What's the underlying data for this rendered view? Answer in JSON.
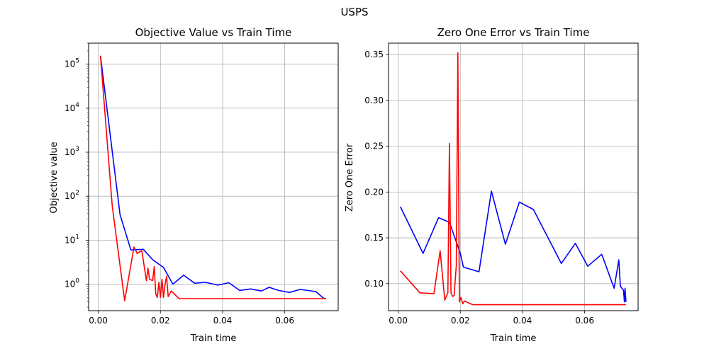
{
  "suptitle": "USPS",
  "chart_data": [
    {
      "type": "line",
      "title": "Objective Value vs Train Time",
      "xlabel": "Train time",
      "ylabel": "Objective value",
      "yscale": "log",
      "xlim": [
        -0.0031,
        0.0772
      ],
      "ylim": [
        0.25,
        300000
      ],
      "xticks": [
        "0.00",
        "0.02",
        "0.04",
        "0.06"
      ],
      "xtick_values": [
        0,
        0.02,
        0.04,
        0.06
      ],
      "yticks": [
        "10^0",
        "10^1",
        "10^2",
        "10^3",
        "10^4",
        "10^5"
      ],
      "ytick_values": [
        1,
        10,
        100,
        1000,
        10000,
        100000
      ],
      "grid": true,
      "series": [
        {
          "color": "#0000ff",
          "x": [
            0.0007,
            0.007,
            0.0105,
            0.0145,
            0.0175,
            0.021,
            0.024,
            0.0275,
            0.031,
            0.0345,
            0.0385,
            0.042,
            0.0455,
            0.049,
            0.0525,
            0.055,
            0.058,
            0.0615,
            0.065,
            0.07,
            0.0715,
            0.0725,
            0.0733
          ],
          "y": [
            155000,
            38,
            6.0,
            6.2,
            3.6,
            2.4,
            1.0,
            1.6,
            1.05,
            1.1,
            0.95,
            1.08,
            0.72,
            0.78,
            0.7,
            0.85,
            0.72,
            0.65,
            0.76,
            0.68,
            0.55,
            0.48,
            0.47
          ]
        },
        {
          "color": "#ff0000",
          "x": [
            0.0007,
            0.0045,
            0.0085,
            0.0115,
            0.0125,
            0.014,
            0.0155,
            0.016,
            0.0165,
            0.0175,
            0.018,
            0.0185,
            0.019,
            0.0195,
            0.02,
            0.0205,
            0.021,
            0.0215,
            0.022,
            0.0225,
            0.0235,
            0.026,
            0.03,
            0.04,
            0.05,
            0.06,
            0.07,
            0.072,
            0.0733
          ],
          "y": [
            155000,
            60,
            0.42,
            7.0,
            5.0,
            5.8,
            1.2,
            2.3,
            1.3,
            1.2,
            2.5,
            0.6,
            0.5,
            1.1,
            0.5,
            1.3,
            0.5,
            1.0,
            1.5,
            0.52,
            0.7,
            0.47,
            0.47,
            0.47,
            0.47,
            0.47,
            0.47,
            0.47,
            0.47
          ]
        }
      ]
    },
    {
      "type": "line",
      "title": "Zero One Error vs Train Time",
      "xlabel": "Train time",
      "ylabel": "Zero One Error",
      "yscale": "linear",
      "xlim": [
        -0.0031,
        0.0772
      ],
      "ylim": [
        0.0705,
        0.3625
      ],
      "xticks": [
        "0.00",
        "0.02",
        "0.04",
        "0.06"
      ],
      "xtick_values": [
        0,
        0.02,
        0.04,
        0.06
      ],
      "yticks": [
        "0.10",
        "0.15",
        "0.20",
        "0.25",
        "0.30",
        "0.35"
      ],
      "ytick_values": [
        0.1,
        0.15,
        0.2,
        0.25,
        0.3,
        0.35
      ],
      "grid": true,
      "series": [
        {
          "color": "#0000ff",
          "x": [
            0.0007,
            0.008,
            0.013,
            0.0165,
            0.02,
            0.021,
            0.026,
            0.03,
            0.0345,
            0.039,
            0.0435,
            0.0525,
            0.057,
            0.061,
            0.0655,
            0.0695,
            0.071,
            0.0715,
            0.0725,
            0.0728,
            0.073,
            0.0733
          ],
          "y": [
            0.184,
            0.133,
            0.172,
            0.167,
            0.133,
            0.118,
            0.113,
            0.201,
            0.143,
            0.189,
            0.181,
            0.122,
            0.144,
            0.119,
            0.132,
            0.095,
            0.126,
            0.097,
            0.093,
            0.08,
            0.095,
            0.08
          ]
        },
        {
          "color": "#ff0000",
          "x": [
            0.0007,
            0.007,
            0.0115,
            0.0135,
            0.015,
            0.016,
            0.0165,
            0.017,
            0.0175,
            0.018,
            0.0187,
            0.0192,
            0.0197,
            0.0202,
            0.0208,
            0.0213,
            0.022,
            0.024,
            0.026,
            0.04,
            0.06,
            0.0733
          ],
          "y": [
            0.114,
            0.09,
            0.089,
            0.136,
            0.082,
            0.09,
            0.253,
            0.09,
            0.086,
            0.087,
            0.12,
            0.352,
            0.08,
            0.085,
            0.078,
            0.081,
            0.08,
            0.077,
            0.077,
            0.077,
            0.077,
            0.077
          ]
        }
      ]
    }
  ]
}
